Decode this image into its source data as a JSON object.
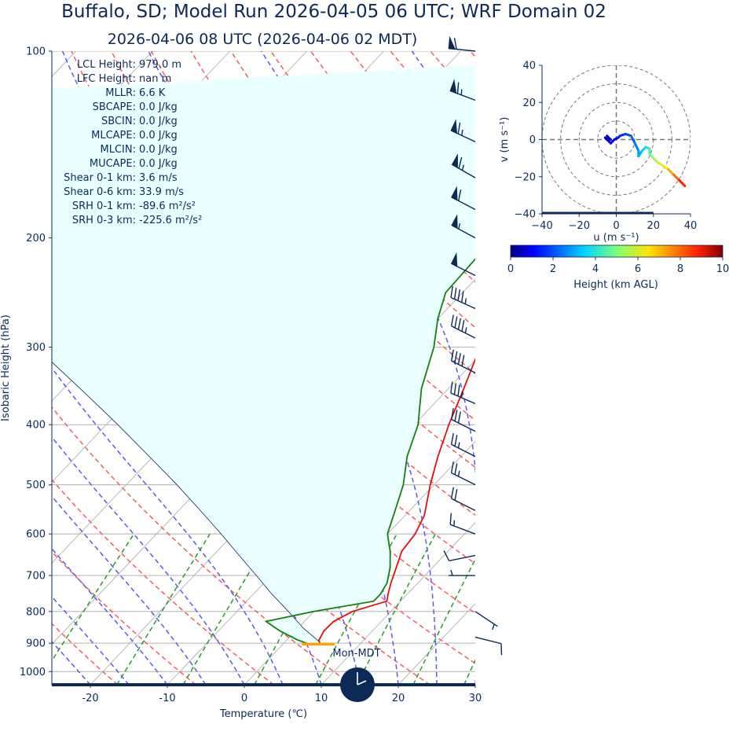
{
  "title_line1": "Buffalo, SD; Model Run 2026-04-05 06 UTC; WRF Domain 02",
  "title_line2": "2026-04-06 08 UTC  (2026-04-06 02 MDT)",
  "clock_label": "Mon-MDT",
  "colors": {
    "title": "#0b2a55",
    "temperature": "#e01010",
    "dewpoint": "#108010",
    "cape_fill": "#eaffff",
    "dry_adiabat": "#f06060",
    "moist_adiabat": "#5a5af0",
    "mixing_ratio": "#2a9a2a",
    "isotherm": "#b0b0b0",
    "barb": "#0b2a55",
    "lcl_marker": "#ffa500"
  },
  "stats": [
    {
      "label": "LCL Height:",
      "value": "979.0 m"
    },
    {
      "label": "LFC Height:",
      "value": "nan m"
    },
    {
      "label": "MLLR:",
      "value": "6.6 K"
    },
    {
      "label": "SBCAPE:",
      "value": "0.0 J/kg"
    },
    {
      "label": "SBCIN:",
      "value": "0.0 J/kg"
    },
    {
      "label": "MLCAPE:",
      "value": "0.0 J/kg"
    },
    {
      "label": "MLCIN:",
      "value": "0.0 J/kg"
    },
    {
      "label": "MUCAPE:",
      "value": "0.0 J/kg"
    },
    {
      "label": "Shear 0-1 km:",
      "value": "3.6 m/s"
    },
    {
      "label": "Shear 0-6 km:",
      "value": "33.9 m/s"
    },
    {
      "label": "SRH 0-1 km:",
      "value": "-89.6 m²/s²"
    },
    {
      "label": "SRH 0-3 km:",
      "value": "-225.6 m²/s²"
    }
  ],
  "chart_data": [
    {
      "type": "line",
      "subtype": "skew-T log-p",
      "xlabel": "Temperature (℃)",
      "ylabel": "Isobaric Height (hPa)",
      "xlim": [
        -25,
        30
      ],
      "ylim": [
        1050,
        100
      ],
      "x_ticks": [
        -20,
        -10,
        0,
        10,
        20,
        30
      ],
      "y_ticks": [
        100,
        200,
        300,
        400,
        500,
        600,
        700,
        800,
        900,
        1000
      ],
      "lcl_pressure": 903,
      "series": [
        {
          "key": "temperature",
          "p": [
            907,
            890,
            860,
            830,
            800,
            770,
            750,
            720,
            680,
            640,
            600,
            560,
            500,
            450,
            400,
            350,
            300,
            270,
            245,
            215,
            170,
            145,
            125,
            100
          ],
          "t": [
            5,
            4.2,
            3.7,
            3.8,
            5,
            8.2,
            7.5,
            6.5,
            5.3,
            4,
            3.6,
            2.5,
            -0.5,
            -3,
            -5.5,
            -8,
            -11,
            -13,
            -14.8,
            -14.8,
            -4,
            4,
            8,
            12
          ]
        },
        {
          "key": "dewpoint",
          "p": [
            907,
            890,
            860,
            830,
            800,
            770,
            750,
            720,
            680,
            640,
            600,
            560,
            500,
            450,
            400,
            350,
            300,
            270,
            245,
            215,
            170,
            145,
            125,
            100
          ],
          "t": [
            4,
            1.5,
            -2,
            -5,
            0,
            6.5,
            6.5,
            6,
            4.5,
            2.5,
            0,
            -1.5,
            -4,
            -7,
            -9.5,
            -13.5,
            -17,
            -20,
            -22.2,
            -22.5,
            -20.5,
            -21.5,
            -20,
            -14
          ]
        },
        {
          "key": "parcel",
          "p": [
            907,
            850,
            800,
            750,
            700,
            650,
            600,
            550,
            500,
            450,
            400,
            350,
            300,
            250,
            200,
            150,
            120
          ],
          "t": [
            5.4,
            0.6,
            -3.3,
            -7.6,
            -11.9,
            -16.6,
            -21.6,
            -27.2,
            -33.4,
            -40.5,
            -48.5,
            -57.8,
            -68.7,
            -80.4,
            -95,
            -112,
            -125
          ]
        }
      ]
    },
    {
      "type": "line",
      "subtype": "hodograph",
      "xlabel": "u (m s⁻¹)",
      "ylabel": "v (m s⁻¹)",
      "xlim": [
        -40,
        40
      ],
      "ylim": [
        -40,
        40
      ],
      "x_ticks": [
        -40,
        -20,
        0,
        20,
        40
      ],
      "y_ticks": [
        -40,
        -20,
        0,
        20,
        40
      ],
      "rings": [
        10,
        20,
        30,
        40
      ],
      "colorbar": {
        "label": "Height (km AGL)",
        "min": 0,
        "max": 10,
        "ticks": [
          0,
          2,
          4,
          6,
          8,
          10
        ]
      },
      "points": [
        {
          "u": -5,
          "v": 2,
          "h": 0.1
        },
        {
          "u": -3,
          "v": 0,
          "h": 0.3
        },
        {
          "u": -6,
          "v": 1,
          "h": 0.5
        },
        {
          "u": -3,
          "v": -2,
          "h": 0.7
        },
        {
          "u": -1,
          "v": 0,
          "h": 0.9
        },
        {
          "u": 1,
          "v": 1,
          "h": 1.1
        },
        {
          "u": 2,
          "v": 2,
          "h": 1.3
        },
        {
          "u": 5,
          "v": 3,
          "h": 1.6
        },
        {
          "u": 8,
          "v": 2,
          "h": 1.9
        },
        {
          "u": 10,
          "v": -2,
          "h": 2.2
        },
        {
          "u": 12,
          "v": -6,
          "h": 2.5
        },
        {
          "u": 12,
          "v": -9,
          "h": 2.8
        },
        {
          "u": 14,
          "v": -6,
          "h": 3.1
        },
        {
          "u": 16,
          "v": -4,
          "h": 3.5
        },
        {
          "u": 18,
          "v": -5,
          "h": 3.9
        },
        {
          "u": 18,
          "v": -8,
          "h": 4.3
        },
        {
          "u": 20,
          "v": -10,
          "h": 4.8
        },
        {
          "u": 22,
          "v": -12,
          "h": 5.3
        },
        {
          "u": 25,
          "v": -14,
          "h": 5.9
        },
        {
          "u": 28,
          "v": -16,
          "h": 6.5
        },
        {
          "u": 31,
          "v": -19,
          "h": 7.2
        },
        {
          "u": 34,
          "v": -22,
          "h": 8.0
        },
        {
          "u": 37,
          "v": -25,
          "h": 8.8
        }
      ]
    }
  ],
  "wind_barbs": [
    {
      "p": 100,
      "u": 30,
      "v": -3
    },
    {
      "p": 120,
      "u": 32,
      "v": -12
    },
    {
      "p": 140,
      "u": 30,
      "v": -14
    },
    {
      "p": 160,
      "u": 28,
      "v": -16
    },
    {
      "p": 180,
      "u": 27,
      "v": -14
    },
    {
      "p": 200,
      "u": 26,
      "v": -14
    },
    {
      "p": 230,
      "u": 24,
      "v": -12
    },
    {
      "p": 260,
      "u": 22,
      "v": -10
    },
    {
      "p": 290,
      "u": 20,
      "v": -10
    },
    {
      "p": 330,
      "u": 18,
      "v": -9
    },
    {
      "p": 370,
      "u": 16,
      "v": -7
    },
    {
      "p": 410,
      "u": 14,
      "v": -7
    },
    {
      "p": 450,
      "u": 12,
      "v": -6
    },
    {
      "p": 500,
      "u": 12,
      "v": -6
    },
    {
      "p": 550,
      "u": 10,
      "v": -5
    },
    {
      "p": 600,
      "u": 8,
      "v": -3
    },
    {
      "p": 650,
      "u": 5,
      "v": 1
    },
    {
      "p": 700,
      "u": 3,
      "v": 0
    },
    {
      "p": 800,
      "u": -3,
      "v": 2
    },
    {
      "p": 880,
      "u": -4,
      "v": 1
    }
  ]
}
